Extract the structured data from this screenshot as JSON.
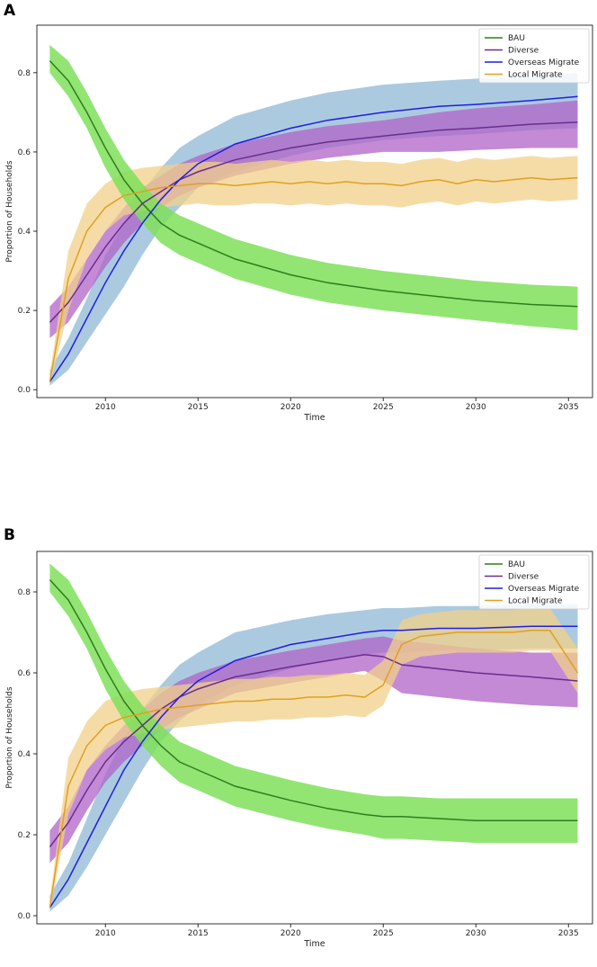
{
  "figure": {
    "panels": [
      "A",
      "B"
    ]
  },
  "colors": {
    "BAU_line": "#2f7d1c",
    "BAU_band": "#7fe05a",
    "Diverse_line": "#6a2d8f",
    "Diverse_band": "#b063c8",
    "Overseas_line": "#1f1fe0",
    "Overseas_band": "#8fb8d6",
    "Local_line": "#e0a020",
    "Local_band": "#f2d08a"
  },
  "chart_data": [
    {
      "type": "line",
      "panel": "A",
      "xlabel": "Time",
      "ylabel": "Proportion of Households",
      "xlim": [
        2006.3,
        2036.3
      ],
      "ylim": [
        -0.02,
        0.92
      ],
      "xticks": [
        2010,
        2015,
        2020,
        2025,
        2030,
        2035
      ],
      "yticks": [
        0.0,
        0.2,
        0.4,
        0.6,
        0.8
      ],
      "xtick_labels": [
        "2010",
        "2015",
        "2020",
        "2025",
        "2030",
        "2035"
      ],
      "ytick_labels": [
        "0.0",
        "0.2",
        "0.4",
        "0.6",
        "0.8"
      ],
      "legend": [
        "BAU",
        "Diverse",
        "Overseas Migrate",
        "Local Migrate"
      ],
      "legend_position": "top-right",
      "series": [
        {
          "name": "BAU",
          "x": [
            2007,
            2008,
            2009,
            2010,
            2011,
            2012,
            2013,
            2014,
            2015,
            2017,
            2020,
            2022,
            2025,
            2028,
            2030,
            2033,
            2035.5
          ],
          "values": [
            0.83,
            0.78,
            0.7,
            0.61,
            0.53,
            0.47,
            0.42,
            0.39,
            0.37,
            0.33,
            0.29,
            0.27,
            0.25,
            0.235,
            0.225,
            0.215,
            0.21
          ],
          "lower": [
            0.8,
            0.74,
            0.66,
            0.56,
            0.48,
            0.42,
            0.37,
            0.34,
            0.32,
            0.28,
            0.24,
            0.22,
            0.2,
            0.185,
            0.175,
            0.16,
            0.15
          ],
          "upper": [
            0.87,
            0.83,
            0.75,
            0.66,
            0.58,
            0.52,
            0.47,
            0.44,
            0.42,
            0.38,
            0.34,
            0.32,
            0.3,
            0.285,
            0.275,
            0.265,
            0.26
          ]
        },
        {
          "name": "Diverse",
          "x": [
            2007,
            2008,
            2009,
            2010,
            2011,
            2012,
            2013,
            2014,
            2015,
            2017,
            2020,
            2022,
            2025,
            2028,
            2030,
            2033,
            2035.5
          ],
          "values": [
            0.17,
            0.22,
            0.29,
            0.36,
            0.42,
            0.47,
            0.5,
            0.53,
            0.55,
            0.58,
            0.61,
            0.625,
            0.64,
            0.655,
            0.66,
            0.67,
            0.675
          ],
          "lower": [
            0.13,
            0.17,
            0.24,
            0.31,
            0.37,
            0.42,
            0.46,
            0.49,
            0.51,
            0.54,
            0.57,
            0.585,
            0.6,
            0.6,
            0.605,
            0.61,
            0.61
          ],
          "upper": [
            0.21,
            0.26,
            0.33,
            0.4,
            0.46,
            0.51,
            0.54,
            0.57,
            0.59,
            0.62,
            0.65,
            0.665,
            0.68,
            0.7,
            0.71,
            0.72,
            0.73
          ]
        },
        {
          "name": "Overseas Migrate",
          "x": [
            2007,
            2008,
            2009,
            2010,
            2011,
            2012,
            2013,
            2014,
            2015,
            2017,
            2020,
            2022,
            2025,
            2028,
            2030,
            2033,
            2035.5
          ],
          "values": [
            0.02,
            0.09,
            0.18,
            0.27,
            0.35,
            0.42,
            0.48,
            0.53,
            0.57,
            0.62,
            0.66,
            0.68,
            0.7,
            0.715,
            0.72,
            0.73,
            0.74
          ],
          "lower": [
            0.01,
            0.05,
            0.12,
            0.19,
            0.26,
            0.34,
            0.41,
            0.46,
            0.51,
            0.55,
            0.59,
            0.61,
            0.63,
            0.64,
            0.645,
            0.655,
            0.66
          ],
          "upper": [
            0.05,
            0.13,
            0.23,
            0.34,
            0.42,
            0.5,
            0.56,
            0.61,
            0.64,
            0.69,
            0.73,
            0.75,
            0.77,
            0.78,
            0.785,
            0.79,
            0.8
          ]
        },
        {
          "name": "Local Migrate",
          "x": [
            2007,
            2008,
            2009,
            2010,
            2011,
            2012,
            2013,
            2014,
            2015,
            2016,
            2017,
            2018,
            2019,
            2020,
            2021,
            2022,
            2023,
            2024,
            2025,
            2026,
            2027,
            2028,
            2029,
            2030,
            2031,
            2032,
            2033,
            2034,
            2035.5
          ],
          "values": [
            0.02,
            0.28,
            0.4,
            0.46,
            0.49,
            0.5,
            0.51,
            0.515,
            0.52,
            0.52,
            0.515,
            0.52,
            0.525,
            0.52,
            0.525,
            0.52,
            0.525,
            0.52,
            0.52,
            0.515,
            0.525,
            0.53,
            0.52,
            0.53,
            0.525,
            0.53,
            0.535,
            0.53,
            0.535
          ],
          "lower": [
            0.01,
            0.2,
            0.33,
            0.4,
            0.44,
            0.45,
            0.46,
            0.465,
            0.47,
            0.465,
            0.465,
            0.47,
            0.47,
            0.465,
            0.47,
            0.465,
            0.47,
            0.465,
            0.465,
            0.46,
            0.47,
            0.475,
            0.465,
            0.475,
            0.47,
            0.475,
            0.48,
            0.475,
            0.48
          ],
          "upper": [
            0.04,
            0.35,
            0.47,
            0.52,
            0.55,
            0.56,
            0.565,
            0.57,
            0.575,
            0.575,
            0.57,
            0.575,
            0.58,
            0.575,
            0.58,
            0.575,
            0.58,
            0.575,
            0.575,
            0.57,
            0.58,
            0.585,
            0.575,
            0.585,
            0.58,
            0.585,
            0.59,
            0.585,
            0.59
          ]
        }
      ]
    },
    {
      "type": "line",
      "panel": "B",
      "xlabel": "Time",
      "ylabel": "Proportion of Households",
      "xlim": [
        2006.3,
        2036.3
      ],
      "ylim": [
        -0.02,
        0.9
      ],
      "xticks": [
        2010,
        2015,
        2020,
        2025,
        2030,
        2035
      ],
      "yticks": [
        0.0,
        0.2,
        0.4,
        0.6,
        0.8
      ],
      "xtick_labels": [
        "2010",
        "2015",
        "2020",
        "2025",
        "2030",
        "2035"
      ],
      "ytick_labels": [
        "0.0",
        "0.2",
        "0.4",
        "0.6",
        "0.8"
      ],
      "legend": [
        "BAU",
        "Diverse",
        "Overseas Migrate",
        "Local Migrate"
      ],
      "legend_position": "top-right",
      "series": [
        {
          "name": "BAU",
          "x": [
            2007,
            2008,
            2009,
            2010,
            2011,
            2012,
            2013,
            2014,
            2015,
            2017,
            2020,
            2022,
            2024,
            2025,
            2026,
            2028,
            2030,
            2033,
            2035.5
          ],
          "values": [
            0.83,
            0.78,
            0.7,
            0.61,
            0.53,
            0.47,
            0.42,
            0.38,
            0.36,
            0.32,
            0.285,
            0.265,
            0.25,
            0.245,
            0.245,
            0.24,
            0.235,
            0.235,
            0.235
          ],
          "lower": [
            0.8,
            0.74,
            0.66,
            0.56,
            0.48,
            0.42,
            0.37,
            0.33,
            0.31,
            0.27,
            0.235,
            0.215,
            0.2,
            0.19,
            0.19,
            0.185,
            0.18,
            0.18,
            0.18
          ],
          "upper": [
            0.87,
            0.83,
            0.75,
            0.66,
            0.58,
            0.52,
            0.47,
            0.43,
            0.41,
            0.37,
            0.335,
            0.315,
            0.3,
            0.295,
            0.295,
            0.29,
            0.29,
            0.29,
            0.29
          ]
        },
        {
          "name": "Diverse",
          "x": [
            2007,
            2008,
            2009,
            2010,
            2011,
            2012,
            2013,
            2014,
            2015,
            2017,
            2020,
            2022,
            2024,
            2025,
            2026,
            2028,
            2030,
            2033,
            2035.5
          ],
          "values": [
            0.17,
            0.23,
            0.31,
            0.38,
            0.43,
            0.47,
            0.51,
            0.54,
            0.56,
            0.59,
            0.615,
            0.63,
            0.645,
            0.64,
            0.62,
            0.61,
            0.6,
            0.59,
            0.58
          ],
          "lower": [
            0.13,
            0.18,
            0.26,
            0.33,
            0.38,
            0.42,
            0.46,
            0.49,
            0.51,
            0.55,
            0.575,
            0.59,
            0.605,
            0.58,
            0.55,
            0.54,
            0.53,
            0.52,
            0.515
          ],
          "upper": [
            0.21,
            0.27,
            0.36,
            0.42,
            0.47,
            0.51,
            0.55,
            0.58,
            0.6,
            0.63,
            0.655,
            0.67,
            0.685,
            0.69,
            0.68,
            0.67,
            0.66,
            0.65,
            0.65
          ]
        },
        {
          "name": "Overseas Migrate",
          "x": [
            2007,
            2008,
            2009,
            2010,
            2011,
            2012,
            2013,
            2014,
            2015,
            2017,
            2020,
            2022,
            2024,
            2025,
            2026,
            2028,
            2030,
            2033,
            2035.5
          ],
          "values": [
            0.02,
            0.09,
            0.18,
            0.27,
            0.36,
            0.43,
            0.49,
            0.54,
            0.58,
            0.63,
            0.67,
            0.685,
            0.7,
            0.705,
            0.705,
            0.71,
            0.71,
            0.715,
            0.715
          ],
          "lower": [
            0.01,
            0.05,
            0.12,
            0.2,
            0.28,
            0.36,
            0.43,
            0.48,
            0.52,
            0.57,
            0.61,
            0.63,
            0.645,
            0.65,
            0.65,
            0.655,
            0.655,
            0.66,
            0.66
          ],
          "upper": [
            0.05,
            0.13,
            0.24,
            0.35,
            0.44,
            0.51,
            0.57,
            0.62,
            0.65,
            0.7,
            0.73,
            0.745,
            0.755,
            0.76,
            0.76,
            0.765,
            0.765,
            0.77,
            0.77
          ]
        },
        {
          "name": "Local Migrate",
          "x": [
            2007,
            2008,
            2009,
            2010,
            2011,
            2012,
            2013,
            2014,
            2015,
            2016,
            2017,
            2018,
            2019,
            2020,
            2021,
            2022,
            2023,
            2024,
            2025,
            2026,
            2027,
            2028,
            2029,
            2030,
            2031,
            2032,
            2033,
            2034,
            2035.5
          ],
          "values": [
            0.02,
            0.32,
            0.42,
            0.47,
            0.49,
            0.5,
            0.51,
            0.515,
            0.52,
            0.525,
            0.53,
            0.53,
            0.535,
            0.535,
            0.54,
            0.54,
            0.545,
            0.54,
            0.57,
            0.67,
            0.69,
            0.695,
            0.7,
            0.7,
            0.7,
            0.7,
            0.705,
            0.705,
            0.6
          ],
          "lower": [
            0.01,
            0.25,
            0.36,
            0.41,
            0.44,
            0.45,
            0.46,
            0.465,
            0.47,
            0.475,
            0.48,
            0.48,
            0.485,
            0.485,
            0.49,
            0.49,
            0.495,
            0.49,
            0.52,
            0.62,
            0.64,
            0.645,
            0.65,
            0.65,
            0.65,
            0.65,
            0.655,
            0.655,
            0.55
          ],
          "upper": [
            0.04,
            0.39,
            0.48,
            0.53,
            0.55,
            0.56,
            0.565,
            0.57,
            0.575,
            0.58,
            0.585,
            0.585,
            0.59,
            0.59,
            0.595,
            0.595,
            0.6,
            0.595,
            0.63,
            0.73,
            0.745,
            0.75,
            0.755,
            0.755,
            0.755,
            0.755,
            0.76,
            0.76,
            0.66
          ]
        }
      ]
    }
  ]
}
